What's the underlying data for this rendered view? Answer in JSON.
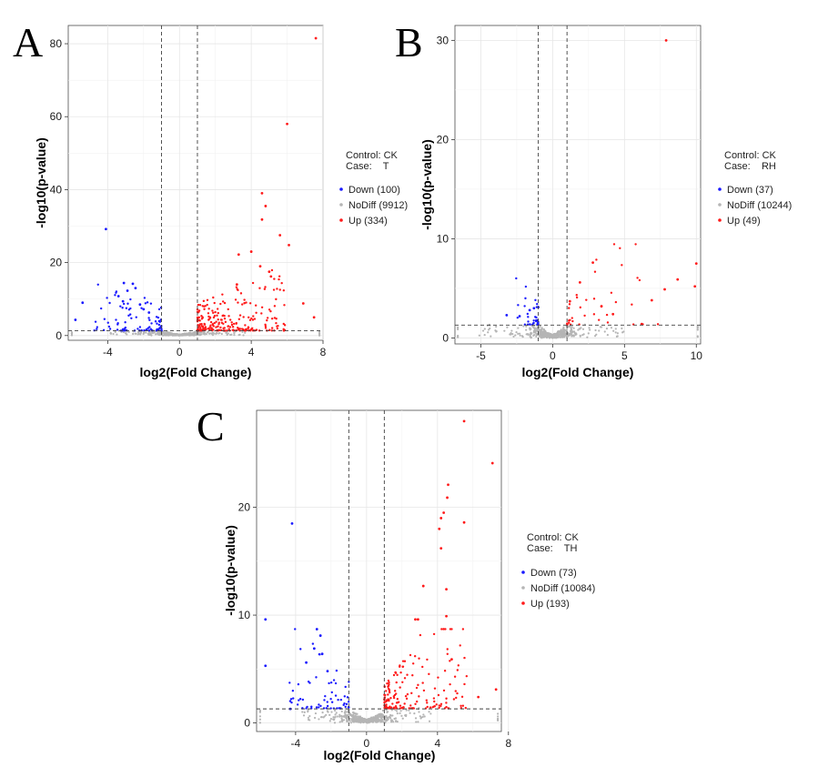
{
  "figure": {
    "colors": {
      "down": "#1a1aff",
      "nodiff": "#b5b5b5",
      "up": "#ff1a1a",
      "grid": "#e6e6e6",
      "panel_border": "#4d4d4d"
    },
    "axis": {
      "x_title": "log2(Fold Change)",
      "y_title": "-log10(p-value)"
    }
  },
  "chart_data": [
    {
      "type": "scatter",
      "panel": "A",
      "xlabel": "log2(Fold Change)",
      "ylabel": "-log10(p-value)",
      "xlim": [
        -6.2,
        8.0
      ],
      "ylim": [
        -1.3,
        85
      ],
      "xticks": [
        -4,
        0,
        4,
        8
      ],
      "yticks": [
        0,
        20,
        40,
        60,
        80
      ],
      "fc_threshold": [
        -1,
        1
      ],
      "p_threshold": 1.3,
      "legend": {
        "title_line1": "Control: CK",
        "title_line2": "Case:    T",
        "entries": [
          {
            "key": "down",
            "label": "Down (100)"
          },
          {
            "key": "nodiff",
            "label": "NoDiff (9912)"
          },
          {
            "key": "up",
            "label": "Up (334)"
          }
        ]
      },
      "series": [
        {
          "name": "Down",
          "n": 100,
          "x_range": [
            -6.0,
            -1.0
          ],
          "highlights": [
            [
              -4.1,
              29.2
            ],
            [
              -3.1,
              14.4
            ],
            [
              -2.6,
              14.2
            ],
            [
              -2.45,
              13.0
            ],
            [
              -2.9,
              12.3
            ],
            [
              -3.4,
              10.8
            ],
            [
              -3.15,
              9.4
            ],
            [
              -5.4,
              9.0
            ],
            [
              -2.2,
              8.5
            ],
            [
              -5.8,
              4.3
            ],
            [
              -2.0,
              7.2
            ],
            [
              -1.7,
              6.3
            ]
          ]
        },
        {
          "name": "NoDiff",
          "n": 9912
        },
        {
          "name": "Up",
          "n": 334,
          "x_range": [
            1.0,
            7.6
          ],
          "highlights": [
            [
              7.6,
              81.5
            ],
            [
              6.0,
              58.0
            ],
            [
              4.6,
              39.0
            ],
            [
              4.8,
              35.5
            ],
            [
              4.6,
              31.8
            ],
            [
              5.6,
              27.5
            ],
            [
              6.1,
              24.8
            ],
            [
              4.0,
              23.0
            ],
            [
              3.3,
              22.2
            ],
            [
              4.5,
              19.0
            ],
            [
              5.0,
              17.5
            ],
            [
              5.1,
              16.2
            ],
            [
              3.2,
              14.0
            ],
            [
              6.9,
              8.8
            ],
            [
              7.5,
              5.0
            ]
          ]
        }
      ]
    },
    {
      "type": "scatter",
      "panel": "B",
      "xlabel": "log2(Fold Change)",
      "ylabel": "-log10(p-value)",
      "xlim": [
        -6.8,
        10.3
      ],
      "ylim": [
        -0.6,
        31.5
      ],
      "xticks": [
        -5,
        0,
        5,
        10
      ],
      "yticks": [
        0,
        10,
        20,
        30
      ],
      "fc_threshold": [
        -1,
        1
      ],
      "p_threshold": 1.3,
      "legend": {
        "title_line1": "Control: CK",
        "title_line2": "Case:    RH",
        "entries": [
          {
            "key": "down",
            "label": "Down (37)"
          },
          {
            "key": "nodiff",
            "label": "NoDiff (10244)"
          },
          {
            "key": "up",
            "label": "Up (49)"
          }
        ]
      },
      "series": [
        {
          "name": "Down",
          "n": 37,
          "x_range": [
            -3.3,
            -1.0
          ],
          "highlights": [
            [
              -3.2,
              2.3
            ],
            [
              -1.0,
              3.1
            ],
            [
              -1.3,
              3.0
            ],
            [
              -1.6,
              2.8
            ],
            [
              -2.3,
              2.2
            ]
          ]
        },
        {
          "name": "NoDiff",
          "n": 10244
        },
        {
          "name": "Up",
          "n": 49,
          "x_range": [
            1.0,
            10.0
          ],
          "highlights": [
            [
              7.9,
              30.0
            ],
            [
              2.8,
              7.6
            ],
            [
              10.0,
              7.5
            ],
            [
              8.7,
              5.9
            ],
            [
              1.9,
              5.6
            ],
            [
              9.9,
              5.2
            ],
            [
              7.8,
              4.9
            ],
            [
              6.9,
              3.8
            ],
            [
              3.4,
              3.2
            ],
            [
              4.2,
              2.4
            ],
            [
              6.2,
              1.4
            ],
            [
              1.2,
              3.7
            ]
          ]
        }
      ]
    },
    {
      "type": "scatter",
      "panel": "C",
      "xlabel": "log2(Fold Change)",
      "ylabel": "-log10(p-value)",
      "xlim": [
        -6.2,
        7.6
      ],
      "ylim": [
        -0.8,
        29
      ],
      "xticks": [
        -4,
        0,
        4,
        8
      ],
      "yticks": [
        0,
        10,
        20
      ],
      "fc_threshold": [
        -1,
        1
      ],
      "p_threshold": 1.3,
      "legend": {
        "title_line1": "Control: CK",
        "title_line2": "Case:    TH",
        "entries": [
          {
            "key": "down",
            "label": "Down (73)"
          },
          {
            "key": "nodiff",
            "label": "NoDiff (10084)"
          },
          {
            "key": "up",
            "label": "Up (193)"
          }
        ]
      },
      "series": [
        {
          "name": "Down",
          "n": 73,
          "x_range": [
            -5.8,
            -1.0
          ],
          "highlights": [
            [
              -4.2,
              18.5
            ],
            [
              -5.7,
              9.6
            ],
            [
              -2.8,
              8.7
            ],
            [
              -2.6,
              8.1
            ],
            [
              -2.95,
              6.9
            ],
            [
              -2.5,
              6.4
            ],
            [
              -3.4,
              5.6
            ],
            [
              -5.7,
              5.3
            ],
            [
              -2.2,
              4.8
            ],
            [
              -4.3,
              1.3
            ]
          ]
        },
        {
          "name": "NoDiff",
          "n": 10084
        },
        {
          "name": "Up",
          "n": 193,
          "x_range": [
            1.0,
            7.3
          ],
          "highlights": [
            [
              5.5,
              28.0
            ],
            [
              7.1,
              24.1
            ],
            [
              4.6,
              22.1
            ],
            [
              4.55,
              20.9
            ],
            [
              4.35,
              19.5
            ],
            [
              4.2,
              19.0
            ],
            [
              4.1,
              18.0
            ],
            [
              5.5,
              18.6
            ],
            [
              4.2,
              16.2
            ],
            [
              3.2,
              12.7
            ],
            [
              4.5,
              12.4
            ],
            [
              4.5,
              9.9
            ],
            [
              2.75,
              9.6
            ],
            [
              2.9,
              9.6
            ],
            [
              4.8,
              5.9
            ],
            [
              7.3,
              3.1
            ],
            [
              6.3,
              2.4
            ]
          ]
        }
      ]
    }
  ]
}
